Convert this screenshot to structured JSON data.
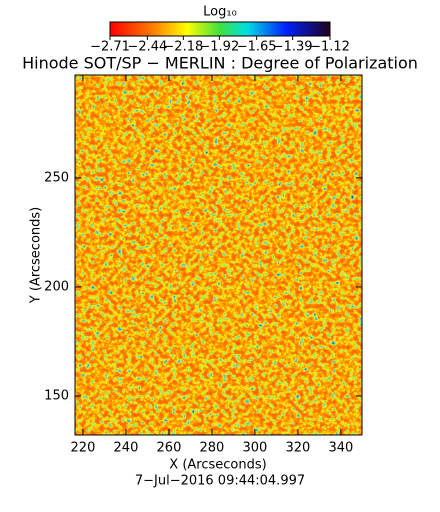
{
  "chart_data": {
    "type": "image",
    "title": "Hinode SOT/SP − MERLIN : Degree of Polarization",
    "x_label": "X (Arcseconds)",
    "y_label": "Y (Arcseconds)",
    "footer": "7−Jul−2016 09:44:04.997",
    "xlim": [
      216.3,
      349.8
    ],
    "xticks": [
      220,
      240,
      260,
      280,
      300,
      320,
      340
    ],
    "ylim": [
      132.1,
      297.2
    ],
    "yticks": [
      150,
      200,
      250
    ],
    "colorbar": {
      "label": "Log₁₀",
      "lim": [
        -2.71,
        -1.12
      ],
      "ticks": [
        {
          "value": -2.71,
          "label": "−2.71"
        },
        {
          "value": -2.44,
          "label": "−2.44"
        },
        {
          "value": -2.18,
          "label": "−2.18"
        },
        {
          "value": -1.92,
          "label": "−1.92"
        },
        {
          "value": -1.65,
          "label": "−1.65"
        },
        {
          "value": -1.39,
          "label": "−1.39"
        },
        {
          "value": -1.12,
          "label": "−1.12"
        }
      ]
    }
  }
}
